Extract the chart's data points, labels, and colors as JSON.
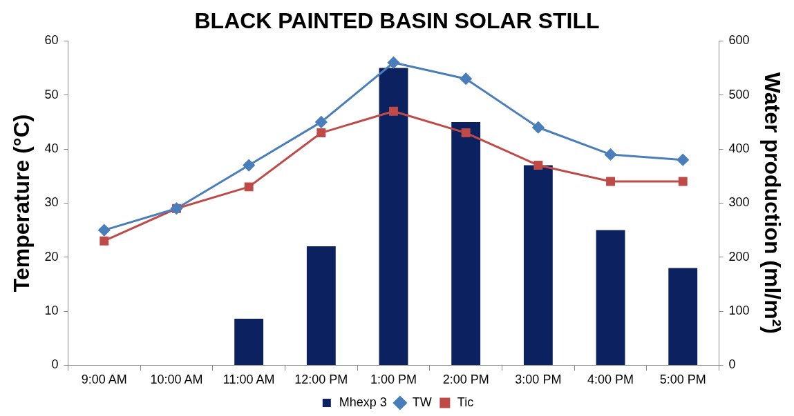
{
  "chart_data": {
    "type": "line",
    "title": "BLACK PAINTED BASIN SOLAR STILL",
    "ylabel": "Temperature (°C)",
    "y2label": "Water production (ml/m²)",
    "categories": [
      "9:00 AM",
      "10:00 AM",
      "11:00 AM",
      "12:00 PM",
      "1:00 PM",
      "2:00 PM",
      "3:00 PM",
      "4:00 PM",
      "5:00 PM"
    ],
    "series": [
      {
        "name": "Mhexp 3",
        "type": "bar",
        "axis": "y2",
        "color": "#0c2160",
        "values": [
          0,
          0,
          86,
          220,
          550,
          450,
          370,
          250,
          180
        ]
      },
      {
        "name": "TW",
        "marker": "diamond",
        "color": "#4a7ebb",
        "values": [
          25,
          29,
          37,
          45,
          56,
          53,
          44,
          39,
          38
        ]
      },
      {
        "name": "Tic",
        "marker": "square",
        "color": "#be4b48",
        "values": [
          23,
          29,
          33,
          43,
          47,
          43,
          37,
          34,
          34
        ]
      }
    ],
    "ylim": [
      0,
      60
    ],
    "yticks": [
      0,
      10,
      20,
      30,
      40,
      50,
      60
    ],
    "y2lim": [
      0,
      600
    ],
    "y2ticks": [
      0,
      100,
      200,
      300,
      400,
      500,
      600
    ],
    "grid": false,
    "legend": "bottom"
  }
}
